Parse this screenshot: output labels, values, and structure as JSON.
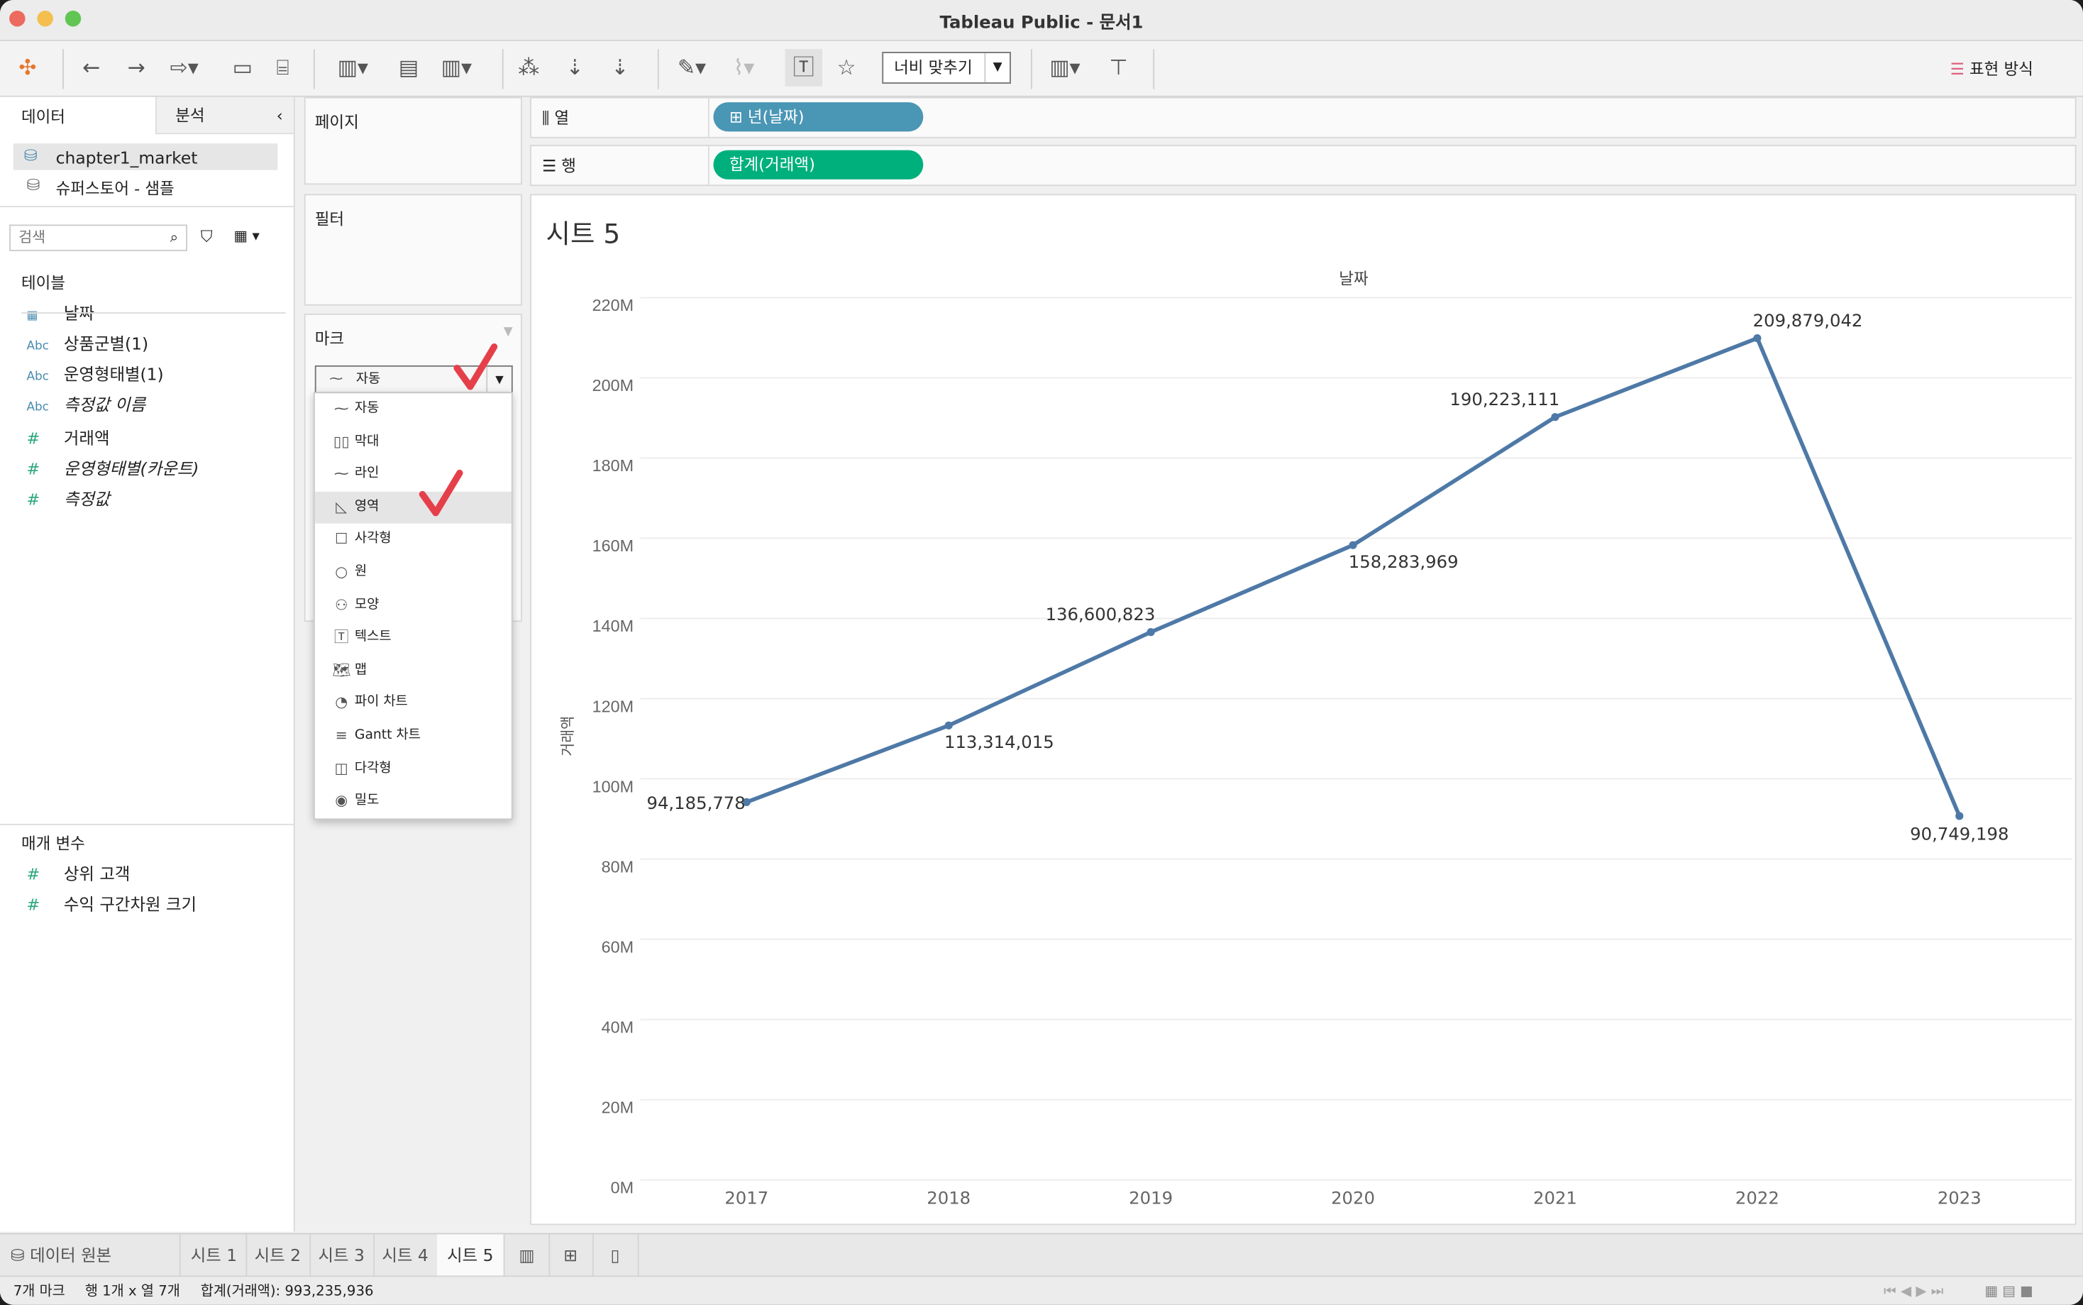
{
  "window": {
    "title": "Tableau Public - 문서1"
  },
  "toolbar": {
    "fit_label": "너비 맞추기",
    "show_me": "표현 방식"
  },
  "side": {
    "tabs": [
      "데이터",
      "분석"
    ],
    "sources": [
      "chapter1_market",
      "슈퍼스토어 - 샘플"
    ],
    "search_placeholder": "검색",
    "tables_header": "테이블",
    "fields": [
      {
        "type": "date",
        "icon": "calendar-icon",
        "label": "날짜"
      },
      {
        "type": "Abc",
        "label": "상품군별(1)"
      },
      {
        "type": "Abc",
        "label": "운영형태별(1)"
      },
      {
        "type": "Abc",
        "label": "측정값 이름"
      },
      {
        "type": "#",
        "label": "거래액"
      },
      {
        "type": "#",
        "label": "운영형태별(카운트)"
      },
      {
        "type": "#",
        "label": "측정값"
      }
    ],
    "params_header": "매개 변수",
    "params": [
      {
        "type": "#",
        "label": "상위 고객"
      },
      {
        "type": "#",
        "label": "수익 구간차원 크기"
      }
    ]
  },
  "cards": {
    "pages": "페이지",
    "filters": "필터",
    "marks": "마크",
    "marks_selected": "자동"
  },
  "marks_menu": [
    {
      "icon": "line-icon",
      "label": "자동"
    },
    {
      "icon": "bar-icon",
      "label": "막대"
    },
    {
      "icon": "line-icon",
      "label": "라인"
    },
    {
      "icon": "area-icon",
      "label": "영역",
      "hover": true
    },
    {
      "icon": "square-icon",
      "label": "사각형"
    },
    {
      "icon": "circle-icon",
      "label": "원"
    },
    {
      "icon": "shape-icon",
      "label": "모양"
    },
    {
      "icon": "text-icon",
      "label": "텍스트"
    },
    {
      "icon": "map-icon",
      "label": "맵"
    },
    {
      "icon": "pie-icon",
      "label": "파이 차트"
    },
    {
      "icon": "gantt-icon",
      "label": "Gantt 차트"
    },
    {
      "icon": "polygon-icon",
      "label": "다각형"
    },
    {
      "icon": "density-icon",
      "label": "밀도"
    }
  ],
  "shelves": {
    "columns_label": "열",
    "columns_pill": "⊞ 년(날짜)",
    "rows_label": "행",
    "rows_pill": "합계(거래액)",
    "col_color": "#4a96b5",
    "row_color": "#00b07c"
  },
  "sheet": {
    "title": "시트 5"
  },
  "chart_data": {
    "type": "line",
    "title": "",
    "xlabel": "날짜",
    "ylabel": "거래액",
    "x": [
      "2017",
      "2018",
      "2019",
      "2020",
      "2021",
      "2022",
      "2023"
    ],
    "values": [
      94185778,
      113314015,
      136600823,
      158283969,
      190223111,
      209879042,
      90749198
    ],
    "data_labels": [
      "94,185,778",
      "113,314,015",
      "136,600,823",
      "158,283,969",
      "190,223,111",
      "209,879,042",
      "90,749,198"
    ],
    "yticks": [
      "0M",
      "20M",
      "40M",
      "60M",
      "80M",
      "100M",
      "120M",
      "140M",
      "160M",
      "180M",
      "200M",
      "220M"
    ],
    "ylim": [
      0,
      220000000
    ],
    "grid": true,
    "color": "#4e79a7"
  },
  "bottom_tabs": {
    "data_source": "데이터 원본",
    "sheets": [
      "시트 1",
      "시트 2",
      "시트 3",
      "시트 4",
      "시트 5"
    ],
    "active": "시트 5"
  },
  "status": {
    "marks": "7개 마크",
    "dims": "행 1개 x 열 7개",
    "sum": "합계(거래액): 993,235,936"
  }
}
